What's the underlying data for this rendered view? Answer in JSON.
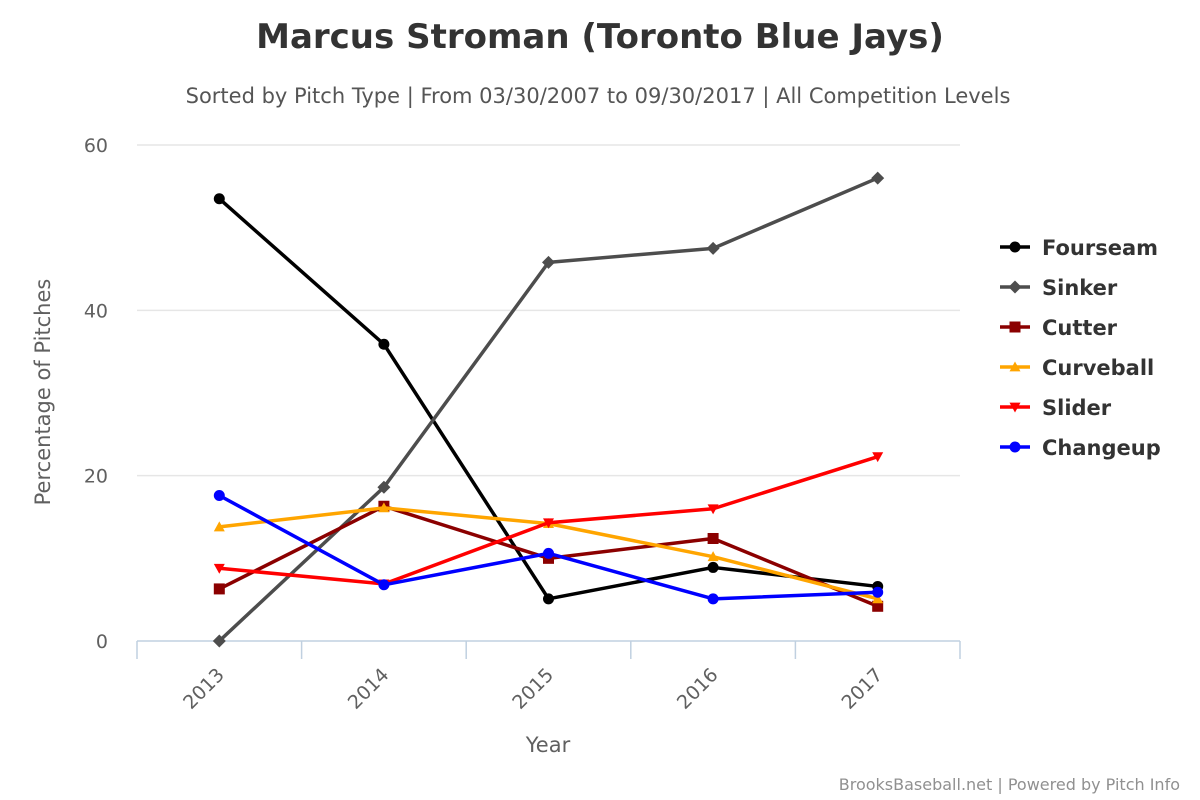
{
  "chart_data": {
    "type": "line",
    "title": "Marcus Stroman (Toronto Blue Jays)",
    "subtitle": "Sorted by Pitch Type | From 03/30/2007 to 09/30/2017 | All Competition Levels",
    "xlabel": "Year",
    "ylabel": "Percentage of Pitches",
    "categories": [
      "2013",
      "2014",
      "2015",
      "2016",
      "2017"
    ],
    "ylim": [
      0,
      60
    ],
    "yticks": [
      0,
      20,
      40,
      60
    ],
    "grid": "horizontal",
    "legend_position": "right",
    "credits": "BrooksBaseball.net | Powered by Pitch Info",
    "series": [
      {
        "name": "Fourseam",
        "color": "#000000",
        "marker": "circle",
        "values": [
          53.5,
          35.9,
          5.1,
          8.9,
          6.6
        ]
      },
      {
        "name": "Sinker",
        "color": "#4d4d4d",
        "marker": "diamond",
        "values": [
          0.0,
          18.6,
          45.8,
          47.5,
          56.0
        ]
      },
      {
        "name": "Cutter",
        "color": "#8b0000",
        "marker": "square",
        "values": [
          6.3,
          16.3,
          10.0,
          12.4,
          4.2
        ]
      },
      {
        "name": "Curveball",
        "color": "#ffa500",
        "marker": "triangle",
        "values": [
          13.8,
          16.1,
          14.2,
          10.2,
          5.1
        ]
      },
      {
        "name": "Slider",
        "color": "#ff0000",
        "marker": "triangle-down",
        "values": [
          8.8,
          6.9,
          14.3,
          16.0,
          22.3
        ]
      },
      {
        "name": "Changeup",
        "color": "#0000ff",
        "marker": "circle",
        "values": [
          17.6,
          6.8,
          10.6,
          5.1,
          5.9
        ]
      }
    ]
  }
}
